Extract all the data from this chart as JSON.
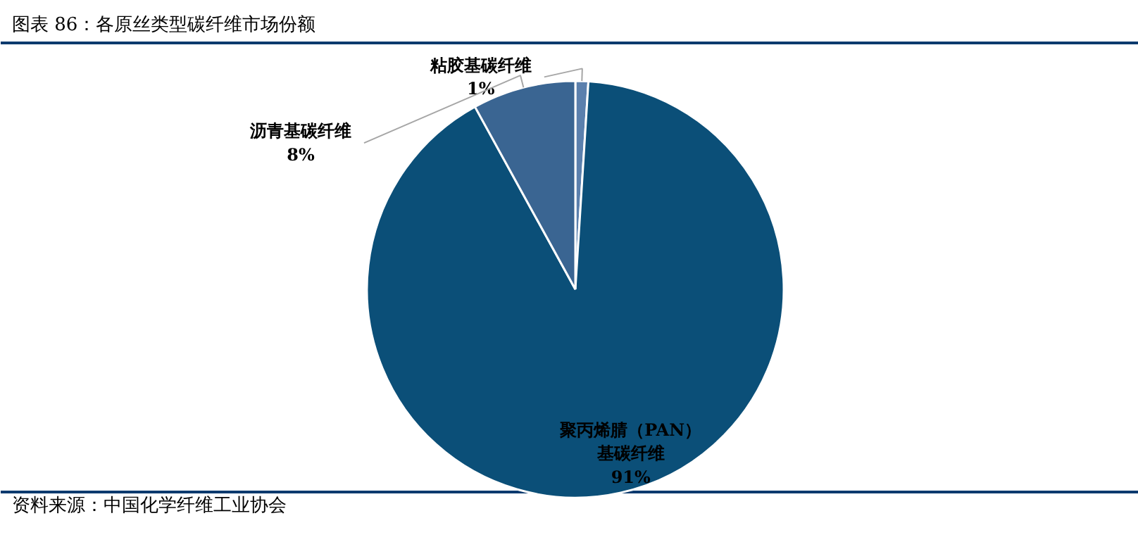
{
  "chart_data": {
    "type": "pie",
    "title": "图表 86：各原丝类型碳纤维市场份额",
    "categories": [
      "粘胶基碳纤维",
      "聚丙烯腈（PAN）基碳纤维",
      "沥青基碳纤维"
    ],
    "values": [
      1,
      91,
      8
    ],
    "colors": [
      "#5b80ad",
      "#0b4f78",
      "#3a6592"
    ],
    "value_labels": [
      "1%",
      "91%",
      "8%"
    ],
    "annotations": [
      "资料来源：中国化学纤维工业协会"
    ]
  }
}
